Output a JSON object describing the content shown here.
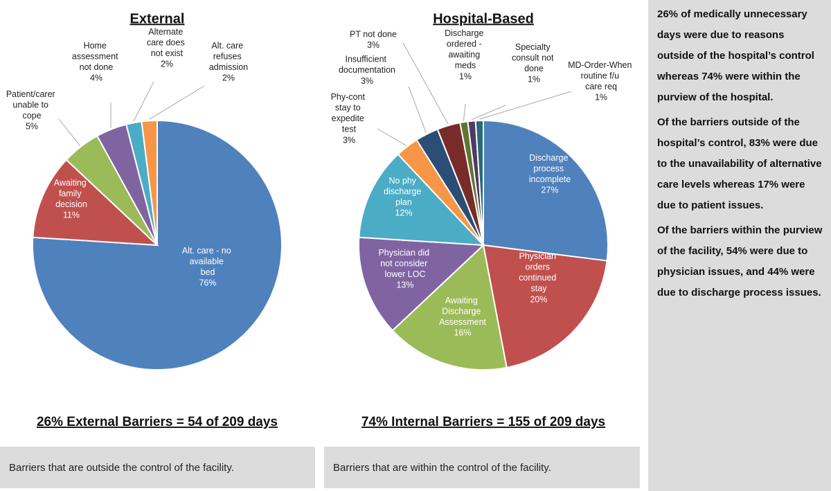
{
  "chart_data": [
    {
      "type": "pie",
      "title": "External",
      "categories": [
        "Alt. care - no available bed",
        "Awaiting family decision",
        "Patient/carer unable to cope",
        "Home assessment not done",
        "Alternate care does not exist",
        "Alt. care refuses admission"
      ],
      "values": [
        76,
        11,
        5,
        4,
        2,
        2
      ],
      "value_labels": [
        "76%",
        "11%",
        "5%",
        "4%",
        "2%",
        "2%"
      ],
      "colors": [
        "#4f81bd",
        "#c0504d",
        "#9bbb59",
        "#8064a2",
        "#4bacc6",
        "#f79646"
      ],
      "footer": "26% External Barriers = 54 of 209 days",
      "caption": "Barriers that are outside the control of the facility."
    },
    {
      "type": "pie",
      "title": "Hospital-Based",
      "categories": [
        "Discharge process incomplete",
        "Physician orders continued stay",
        "Awaiting Discharge Assessment",
        "Physician did not consider lower LOC",
        "No phy discharge plan",
        "Phy-cont stay to expedite test",
        "Insufficient documentation",
        "PT not done",
        "Discharge ordered - awaiting meds",
        "Specialty consult not done",
        "MD-Order-When routine f/u care req"
      ],
      "values": [
        27,
        20,
        16,
        13,
        12,
        3,
        3,
        3,
        1,
        1,
        1
      ],
      "value_labels": [
        "27%",
        "20%",
        "16%",
        "13%",
        "12%",
        "3%",
        "3%",
        "3%",
        "1%",
        "1%",
        "1%"
      ],
      "colors": [
        "#4f81bd",
        "#c0504d",
        "#9bbb59",
        "#8064a2",
        "#4bacc6",
        "#f79646",
        "#2c4d75",
        "#772c2a",
        "#5f7530",
        "#4d3b62",
        "#276a7c"
      ],
      "footer": "74% Internal Barriers = 155 of 209 days",
      "caption": "Barriers that are within the control of the facility."
    }
  ],
  "notes": [
    "26% of medically unnecessary days were due to reasons outside of the hospital’s control whereas 74% were within the purview of the hospital.",
    "Of the barriers outside of the hospital’s control, 83% were due to the unavailability of alternative care levels whereas 17% were due to patient issues.",
    "Of the barriers within the purview of the facility, 54% were due to physician issues, and 44% were due to discharge process issues."
  ]
}
